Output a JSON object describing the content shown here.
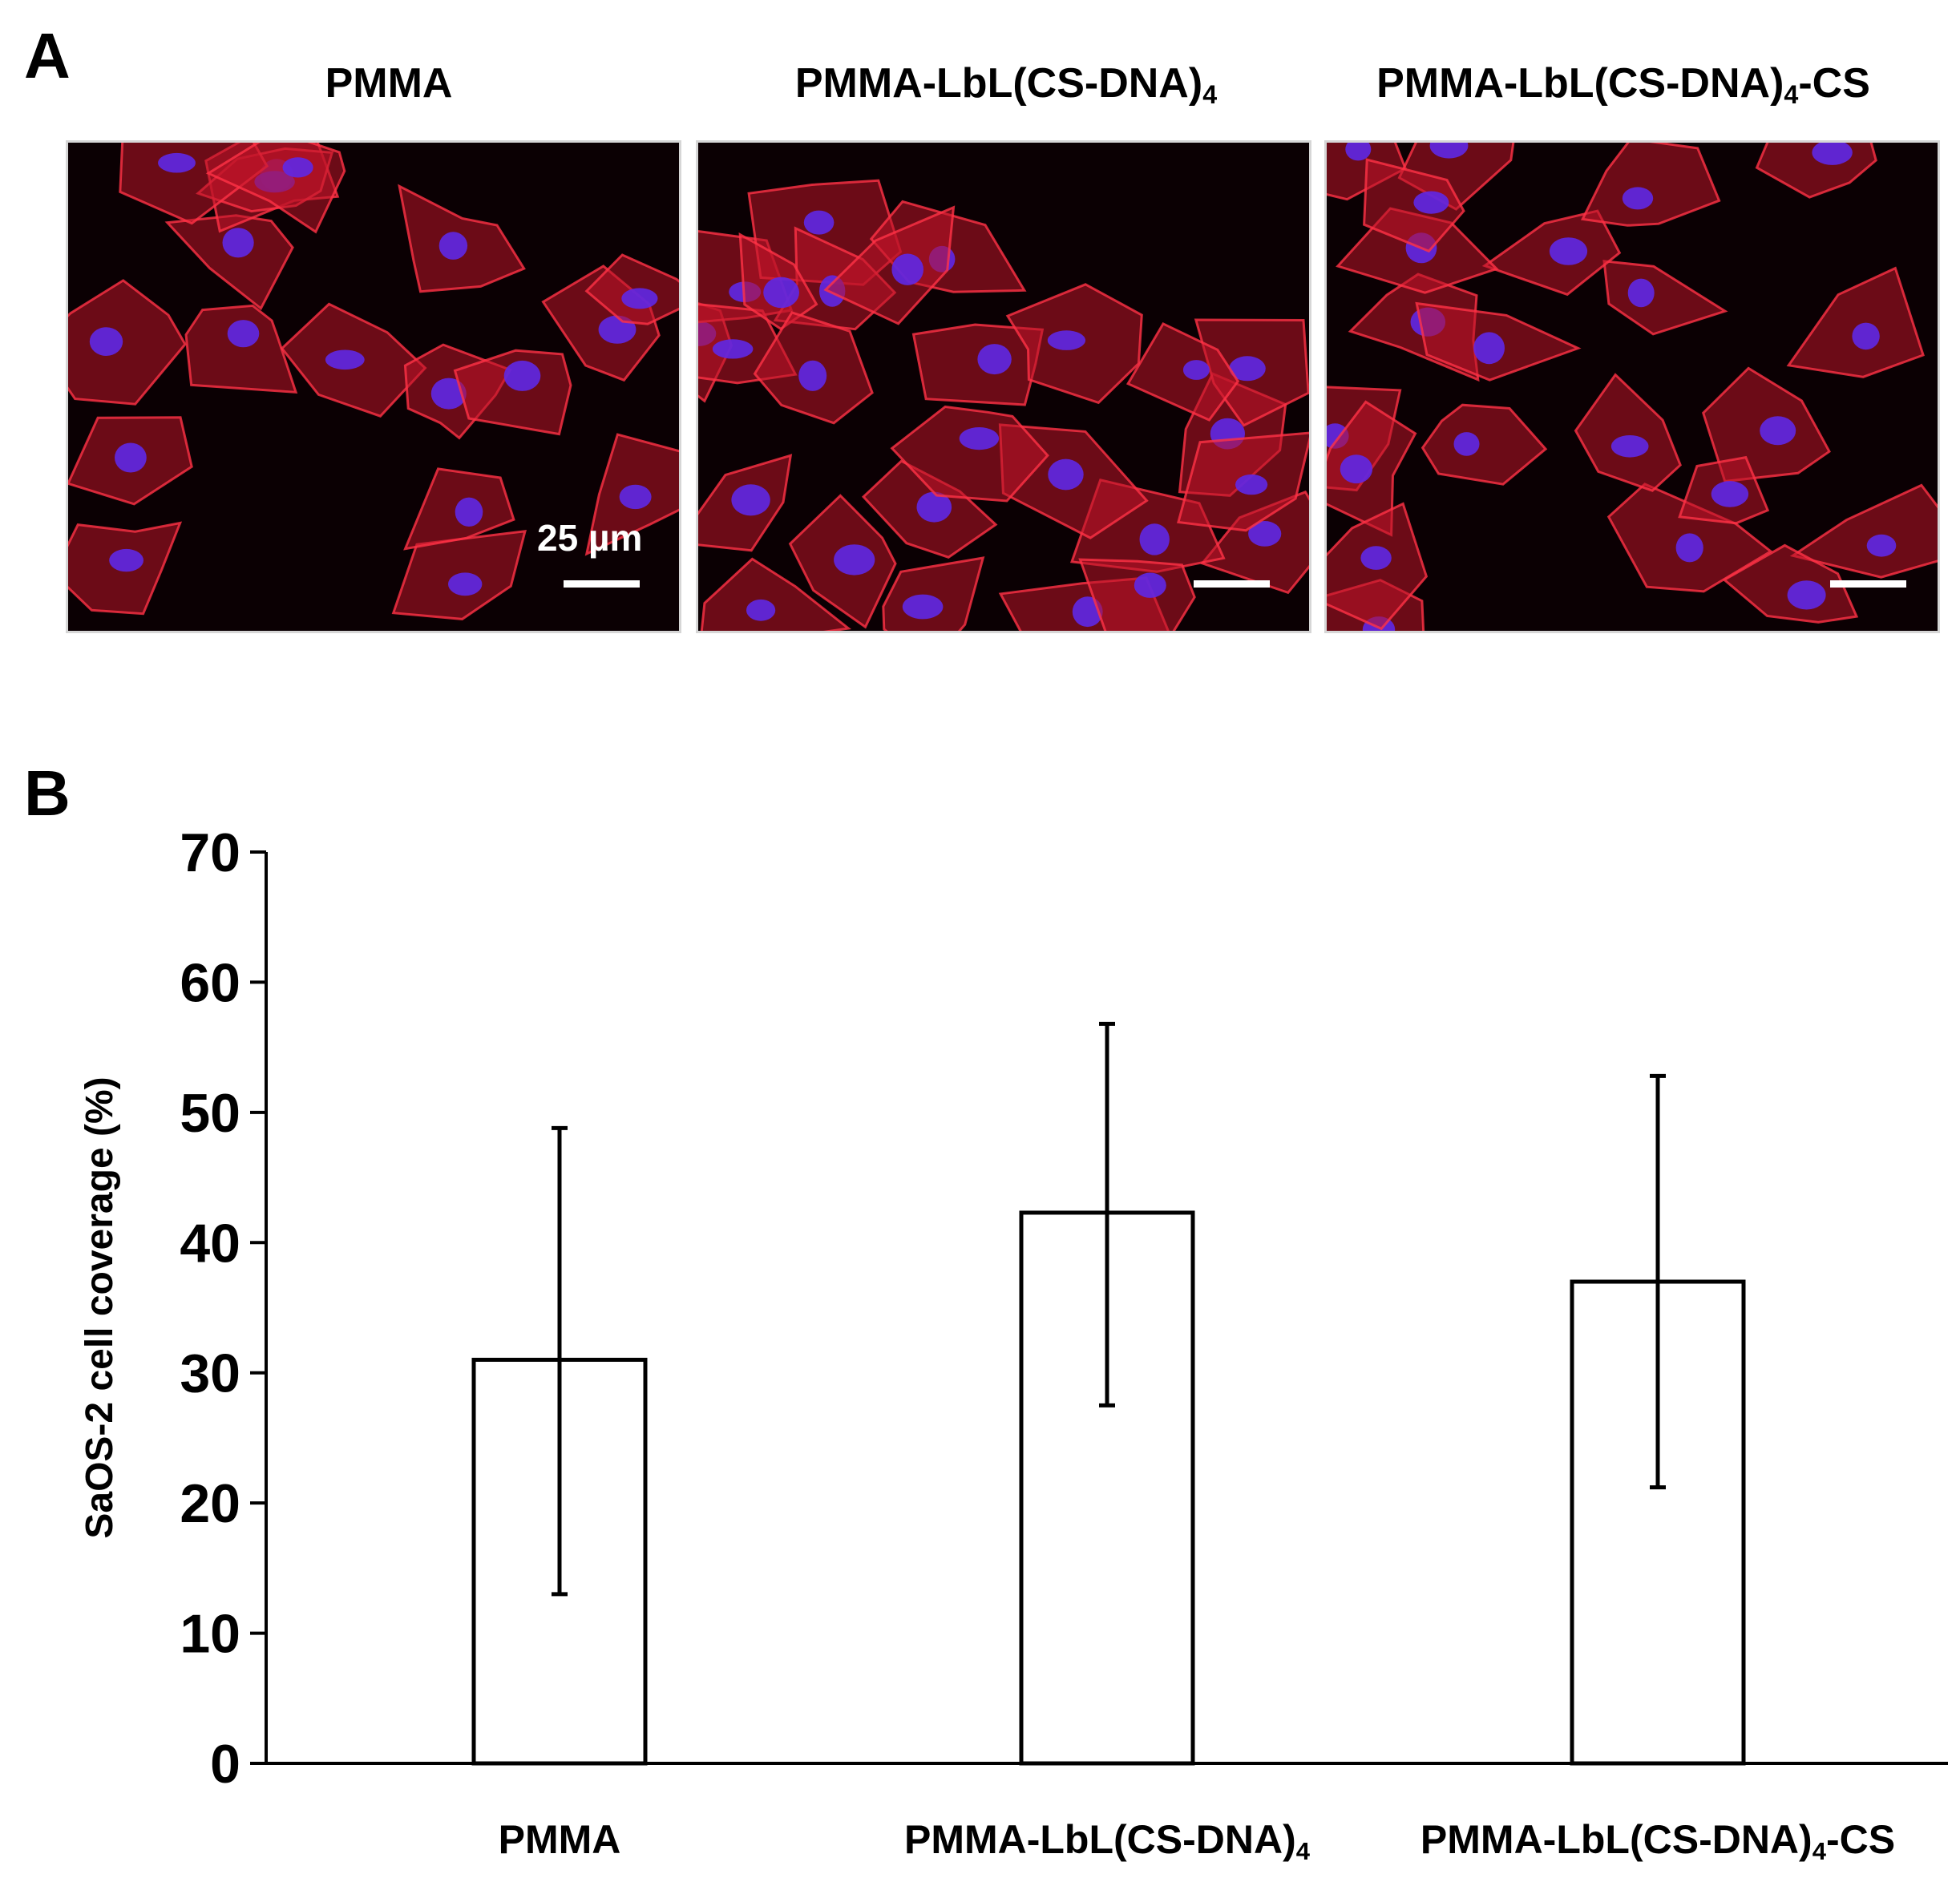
{
  "panel_a": {
    "letter": "A",
    "images": [
      {
        "title_main": "PMMA",
        "title_sub": "",
        "title_tail": ""
      },
      {
        "title_main": "PMMA-LbL(CS-DNA)",
        "title_sub": "4",
        "title_tail": ""
      },
      {
        "title_main": "PMMA-LbL(CS-DNA)",
        "title_sub": "4",
        "title_tail": "-CS"
      }
    ],
    "scale_bar_label": "25 µm"
  },
  "panel_b": {
    "letter": "B"
  },
  "chart_data": {
    "type": "bar",
    "categories": [
      "PMMA",
      "PMMA-LbL(CS-DNA)4",
      "PMMA-LbL(CS-DNA)4-CS"
    ],
    "category_labels": [
      {
        "main": "PMMA",
        "sub": "",
        "tail": ""
      },
      {
        "main": "PMMA-LbL(CS-DNA)",
        "sub": "4",
        "tail": ""
      },
      {
        "main": "PMMA-LbL(CS-DNA)",
        "sub": "4",
        "tail": "-CS"
      }
    ],
    "values": [
      31,
      42.3,
      37
    ],
    "error_low": [
      13,
      27.5,
      21.2
    ],
    "error_high": [
      48.8,
      56.8,
      52.8
    ],
    "ylabel": "SaOS-2 cell coverage (%)",
    "xlabel": "",
    "ylim": [
      0,
      70
    ],
    "yticks": [
      "0",
      "10",
      "20",
      "30",
      "40",
      "50",
      "60",
      "70"
    ],
    "grid": false,
    "bar_fill": "#ffffff",
    "bar_stroke": "#000000"
  }
}
